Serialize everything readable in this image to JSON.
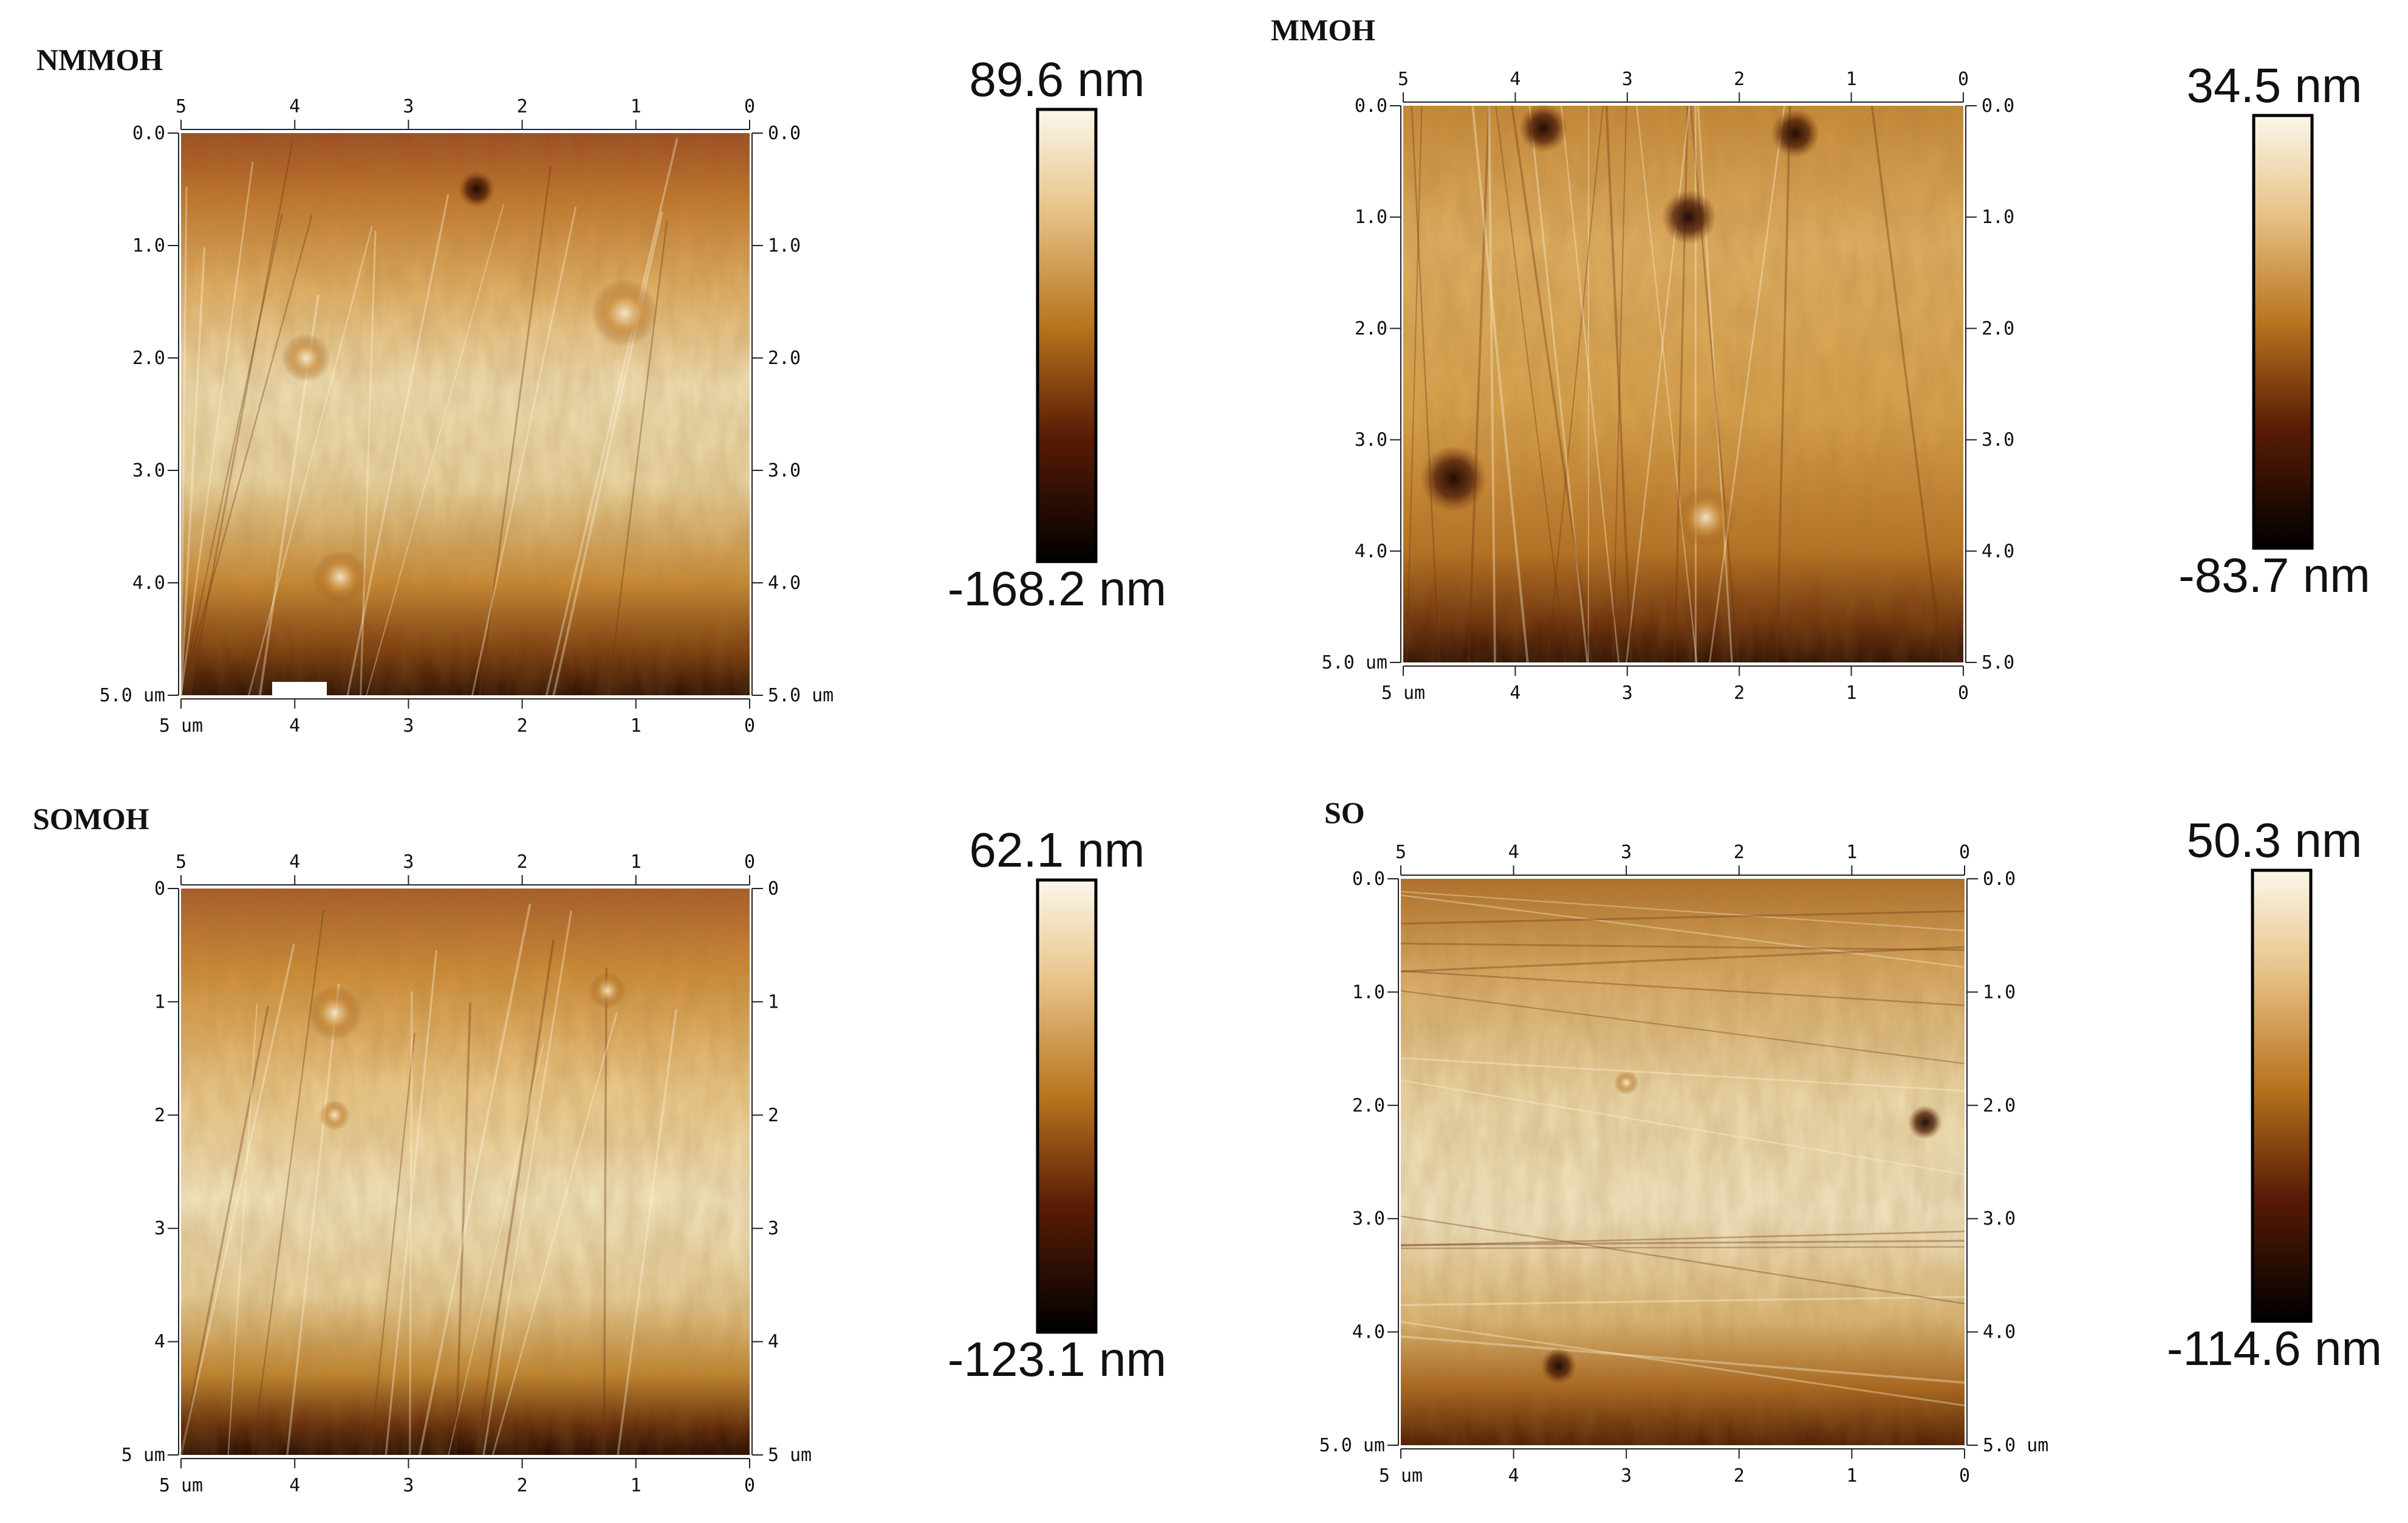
{
  "colors": {
    "scale_top": "#fbf7ea",
    "scale_upper": "#e8c48a",
    "scale_mid": "#b8741e",
    "scale_lower": "#5a1c06",
    "scale_bottom": "#000000"
  },
  "panels": [
    {
      "label": "NMMOH",
      "top_ticks": [
        "5",
        "4",
        "3",
        "2",
        "1",
        "0"
      ],
      "left_ticks": [
        "0.0",
        "1.0",
        "2.0",
        "3.0",
        "4.0",
        "5.0 um"
      ],
      "right_ticks": [
        "0.0",
        "1.0",
        "2.0",
        "3.0",
        "4.0",
        "5.0 um"
      ],
      "bottom_ticks": [
        "5 um",
        "4",
        "3",
        "2",
        "1",
        "0"
      ],
      "scale_max": "89.6 nm",
      "scale_min": "-168.2 nm"
    },
    {
      "label": "MMOH",
      "top_ticks": [
        "5",
        "4",
        "3",
        "2",
        "1",
        "0"
      ],
      "left_ticks": [
        "0.0",
        "1.0",
        "2.0",
        "3.0",
        "4.0",
        "5.0 um"
      ],
      "right_ticks": [
        "0.0",
        "1.0",
        "2.0",
        "3.0",
        "4.0",
        "5.0"
      ],
      "bottom_ticks": [
        "5 um",
        "4",
        "3",
        "2",
        "1",
        "0"
      ],
      "scale_max": "34.5 nm",
      "scale_min": "-83.7 nm"
    },
    {
      "label": "SOMOH",
      "top_ticks": [
        "5",
        "4",
        "3",
        "2",
        "1",
        "0"
      ],
      "left_ticks": [
        "0",
        "1",
        "2",
        "3",
        "4",
        "5 um"
      ],
      "right_ticks": [
        "0",
        "1",
        "2",
        "3",
        "4",
        "5 um"
      ],
      "bottom_ticks": [
        "5 um",
        "4",
        "3",
        "2",
        "1",
        "0"
      ],
      "scale_max": "62.1 nm",
      "scale_min": "-123.1 nm"
    },
    {
      "label": "SO",
      "top_ticks": [
        "5",
        "4",
        "3",
        "2",
        "1",
        "0"
      ],
      "left_ticks": [
        "0.0",
        "1.0",
        "2.0",
        "3.0",
        "4.0",
        "5.0 um"
      ],
      "right_ticks": [
        "0.0",
        "1.0",
        "2.0",
        "3.0",
        "4.0",
        "5.0 um"
      ],
      "bottom_ticks": [
        "5 um",
        "4",
        "3",
        "2",
        "1",
        "0"
      ],
      "scale_max": "50.3 nm",
      "scale_min": "-114.6 nm"
    }
  ]
}
